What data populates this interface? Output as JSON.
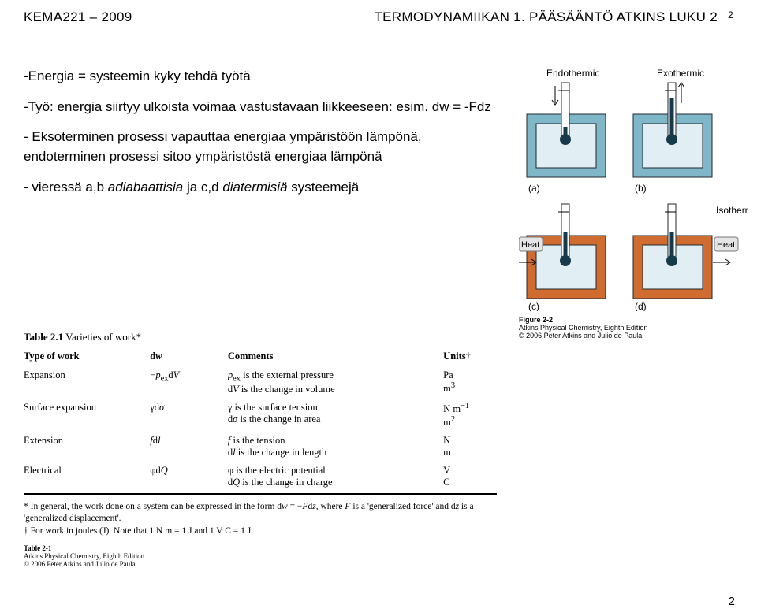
{
  "header": {
    "left": "KEMA221 – 2009",
    "right": "TERMODYNAMIIKAN 1. PÄÄSÄÄNTÖ   ATKINS LUKU 2",
    "pagenum_top": "2"
  },
  "body": {
    "p1": "-Energia = systeemin kyky tehdä työtä",
    "p2": "-Työ: energia siirtyy ulkoista voimaa vastustavaan liikkeeseen: esim. dw = -Fdz",
    "p3": "- Eksoterminen prosessi vapauttaa energiaa ympäristöön lämpönä, endoterminen prosessi sitoo ympäristöstä energiaa lämpönä",
    "p4_prefix": "- vieressä a,b ",
    "p4_italic1": "adiabaattisia",
    "p4_mid": " ja  c,d ",
    "p4_italic2": "diatermisiä",
    "p4_suffix": " systeemejä"
  },
  "diagram": {
    "top_left": "Endothermic",
    "top_right": "Exothermic",
    "a": "(a)",
    "b": "(b)",
    "c": "(c)",
    "d": "(d)",
    "heat": "Heat",
    "isothermal": "Isothermal",
    "caption_title": "Figure 2-2",
    "caption_line1": "Atkins Physical Chemistry, Eighth Edition",
    "caption_line2": "© 2006 Peter Atkins and Julio de Paula",
    "colors": {
      "wall_adiabatic": "#7fb6c8",
      "wall_diathermic": "#d06c2f",
      "fluid": "#e1eef3",
      "outline": "#1f2a30",
      "thermo_bulb": "#173a4a"
    }
  },
  "table": {
    "title_bold": "Table 2.1",
    "title_rest": " Varieties of work*",
    "headers": [
      "Type of work",
      "dw",
      "Comments",
      "Units†"
    ],
    "rows": [
      {
        "type": "Expansion",
        "dw_html": "−<i>p</i><sub>ex</sub>d<i>V</i>",
        "comment_html": "<i>p</i><sub>ex</sub> is the external pressure<br>d<i>V</i> is the change in volume",
        "unit_html": "Pa<br>m<sup>3</sup>"
      },
      {
        "type": "Surface expansion",
        "dw_html": "γd<i>σ</i>",
        "comment_html": "γ is the surface tension<br>d<i>σ</i> is the change in area",
        "unit_html": "N m<sup>−1</sup><br>m<sup>2</sup>"
      },
      {
        "type": "Extension",
        "dw_html": "<i>f</i>d<i>l</i>",
        "comment_html": "<i>f</i> is the tension<br>d<i>l</i> is the change in length",
        "unit_html": "N<br>m"
      },
      {
        "type": "Electrical",
        "dw_html": "φd<i>Q</i>",
        "comment_html": "φ is the electric potential<br>d<i>Q</i> is the change in charge",
        "unit_html": "V<br>C"
      }
    ],
    "footnote1_html": "* In general, the work done on a system can be expressed in the form d<i>w</i> = −<i>F</i>d<i>z</i>, where <i>F</i> is a 'generalized force' and d<i>z</i> is a 'generalized displacement'.",
    "footnote2": "† For work in joules (J). Note that 1 N m = 1 J and 1 V C = 1 J.",
    "caption_title": "Table 2-1",
    "caption_line1": "Atkins Physical Chemistry, Eighth Edition",
    "caption_line2": "© 2006 Peter Atkins and Julio de Paula"
  },
  "bottom_page": "2"
}
